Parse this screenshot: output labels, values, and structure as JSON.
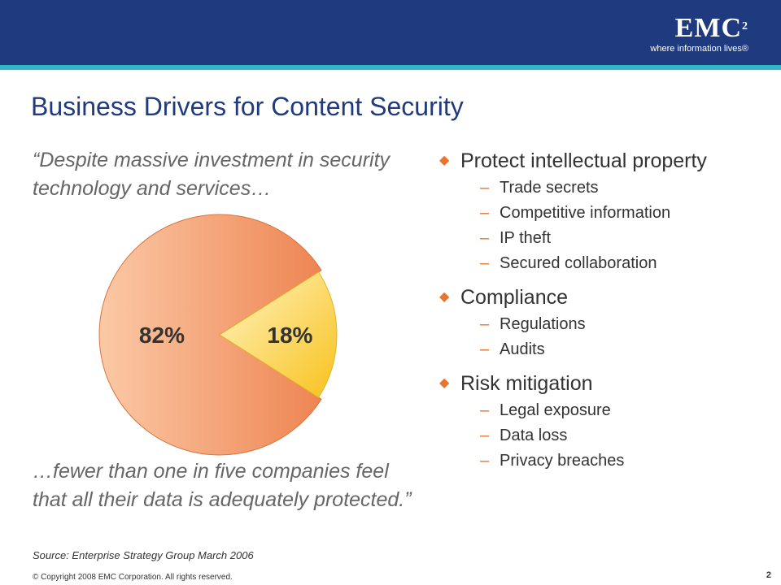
{
  "logo": {
    "main": "EMC",
    "sup": "2",
    "tagline": "where information lives®"
  },
  "title": "Business Drivers for Content Security",
  "quote_top": "“Despite massive investment in security technology and services…",
  "quote_bottom": "…fewer than one in five companies feel that all their data is adequately protected.”",
  "source": "Source: Enterprise Strategy Group March 2006",
  "chart_data": {
    "type": "pie",
    "slices": [
      {
        "label": "82%",
        "value": 82,
        "color": "#f3a173"
      },
      {
        "label": "18%",
        "value": 18,
        "color": "#fde287"
      }
    ]
  },
  "bullets": [
    {
      "text": "Protect intellectual property",
      "items": [
        "Trade secrets",
        "Competitive information",
        "IP theft",
        "Secured collaboration"
      ]
    },
    {
      "text": "Compliance",
      "items": [
        "Regulations",
        "Audits"
      ]
    },
    {
      "text": "Risk mitigation",
      "items": [
        "Legal exposure",
        "Data loss",
        "Privacy breaches"
      ]
    }
  ],
  "footer": {
    "copyright": "© Copyright 2008 EMC Corporation. All rights reserved.",
    "page": "2"
  }
}
